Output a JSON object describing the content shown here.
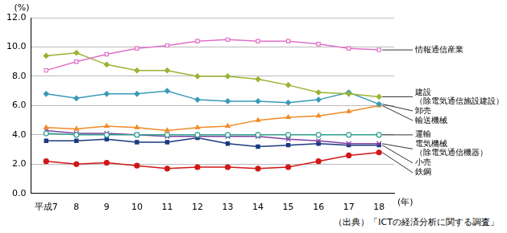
{
  "chart_data": {
    "type": "line",
    "categories": [
      "平成7",
      "8",
      "9",
      "10",
      "11",
      "12",
      "13",
      "14",
      "15",
      "16",
      "17",
      "18"
    ],
    "xlabel": "(年)",
    "ylabel": "(%)",
    "annotation": "（出典）「ICTの経済分析に関する調査」",
    "ylim": [
      0,
      12
    ],
    "yticks": [
      {
        "value": 0,
        "label": "0.0"
      },
      {
        "value": 2,
        "label": "2.0"
      },
      {
        "value": 4,
        "label": "4.0"
      },
      {
        "value": 6,
        "label": "6.0"
      },
      {
        "value": 8,
        "label": "8.0"
      },
      {
        "value": 10,
        "label": "10.0"
      },
      {
        "value": 12,
        "label": "12.0"
      }
    ],
    "grid": true,
    "series": [
      {
        "name": "情報通信産業",
        "color": "#e070c8",
        "marker": "square_open",
        "values": [
          8.4,
          9.0,
          9.5,
          9.9,
          10.1,
          10.4,
          10.5,
          10.4,
          10.4,
          10.2,
          9.9,
          9.8
        ]
      },
      {
        "name": "建設（除電気通信施設建設）",
        "color": "#99b433",
        "marker": "diamond",
        "values": [
          9.4,
          9.6,
          8.8,
          8.4,
          8.4,
          8.0,
          8.0,
          7.8,
          7.4,
          6.9,
          6.8,
          6.6
        ]
      },
      {
        "name": "卸売",
        "color": "#3a9ab8",
        "marker": "diamond",
        "values": [
          6.8,
          6.5,
          6.8,
          6.8,
          7.0,
          6.4,
          6.3,
          6.3,
          6.2,
          6.4,
          6.9,
          6.1
        ]
      },
      {
        "name": "輸送機械",
        "color": "#f08c28",
        "marker": "triangle",
        "values": [
          4.5,
          4.4,
          4.6,
          4.5,
          4.3,
          4.5,
          4.6,
          5.0,
          5.2,
          5.3,
          5.6,
          6.0
        ]
      },
      {
        "name": "運輸",
        "color": "#2ca090",
        "marker": "circle_open",
        "values": [
          4.1,
          4.0,
          4.0,
          4.0,
          4.0,
          4.0,
          4.0,
          4.0,
          4.0,
          4.0,
          4.0,
          4.0
        ]
      },
      {
        "name": "電気機械（除電気通信機器）",
        "color": "#8040a0",
        "marker": "cross",
        "values": [
          4.3,
          4.1,
          4.1,
          4.0,
          3.9,
          3.9,
          3.9,
          3.9,
          3.7,
          3.6,
          3.4,
          3.4
        ]
      },
      {
        "name": "小売",
        "color": "#1a3a80",
        "marker": "square",
        "values": [
          3.6,
          3.6,
          3.7,
          3.5,
          3.5,
          3.8,
          3.4,
          3.2,
          3.3,
          3.4,
          3.3,
          3.3
        ]
      },
      {
        "name": "鉄鋼",
        "color": "#d01818",
        "marker": "circle",
        "values": [
          2.2,
          2.0,
          2.1,
          1.9,
          1.7,
          1.8,
          1.8,
          1.7,
          1.8,
          2.2,
          2.6,
          2.8
        ]
      }
    ]
  }
}
